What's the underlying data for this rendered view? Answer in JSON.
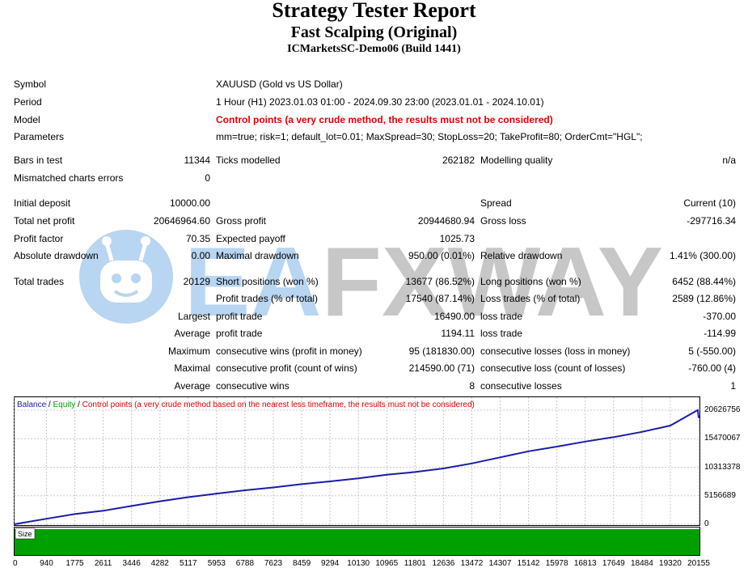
{
  "header": {
    "title": "Strategy Tester Report",
    "subtitle": "Fast Scalping (Original)",
    "server": "ICMarketsSC-Demo06 (Build 1441)"
  },
  "info": {
    "symbol_label": "Symbol",
    "symbol_value": "XAUUSD (Gold vs US Dollar)",
    "period_label": "Period",
    "period_value": "1 Hour (H1) 2023.01.03 01:00 - 2024.09.30 23:00 (2023.01.01 - 2024.10.01)",
    "model_label": "Model",
    "model_value": "Control points (a very crude method, the results must not be considered)",
    "params_label": "Parameters",
    "params_value": "mm=true; risk=1; default_lot=0.01; MaxSpread=30; StopLoss=20; TakeProfit=80; OrderCmt=\"HGL\";"
  },
  "stats": {
    "bars_label": "Bars in test",
    "bars_value": "11344",
    "ticks_label": "Ticks modelled",
    "ticks_value": "262182",
    "mq_label": "Modelling quality",
    "mq_value": "n/a",
    "mismatch_label": "Mismatched charts errors",
    "mismatch_value": "0",
    "deposit_label": "Initial deposit",
    "deposit_value": "10000.00",
    "spread_label": "Spread",
    "spread_value": "Current (10)",
    "netprofit_label": "Total net profit",
    "netprofit_value": "20646964.60",
    "grossprofit_label": "Gross profit",
    "grossprofit_value": "20944680.94",
    "grossloss_label": "Gross loss",
    "grossloss_value": "-297716.34",
    "pf_label": "Profit factor",
    "pf_value": "70.35",
    "ep_label": "Expected payoff",
    "ep_value": "1025.73",
    "absdd_label": "Absolute drawdown",
    "absdd_value": "0.00",
    "maxdd_label": "Maximal drawdown",
    "maxdd_value": "950.00 (0.01%)",
    "reldd_label": "Relative drawdown",
    "reldd_value": "1.41% (300.00)",
    "trades_label": "Total trades",
    "trades_value": "20129",
    "short_label": "Short positions (won %)",
    "short_value": "13677 (86.52%)",
    "long_label": "Long positions (won %)",
    "long_value": "6452 (88.44%)",
    "ptrades_label": "Profit trades (% of total)",
    "ptrades_value": "17540 (87.14%)",
    "ltrades_label": "Loss trades (% of total)",
    "ltrades_value": "2589 (12.86%)",
    "largest_label": "Largest",
    "largest_pt_label": "profit trade",
    "largest_pt_value": "16490.00",
    "largest_lt_label": "loss trade",
    "largest_lt_value": "-370.00",
    "average_label": "Average",
    "average_pt_label": "profit trade",
    "average_pt_value": "1194.11",
    "average_lt_label": "loss trade",
    "average_lt_value": "-114.99",
    "maximum_label": "Maximum",
    "maximum_cw_label": "consecutive wins (profit in money)",
    "maximum_cw_value": "95 (181830.00)",
    "maximum_cl_label": "consecutive losses (loss in money)",
    "maximum_cl_value": "5 (-550.00)",
    "maximal_label": "Maximal",
    "maximal_cp_label": "consecutive profit (count of wins)",
    "maximal_cp_value": "214590.00 (71)",
    "maximal_cl_label": "consecutive loss (count of losses)",
    "maximal_cl_value": "-760.00 (4)",
    "avg2_label": "Average",
    "avg2_cw_label": "consecutive wins",
    "avg2_cw_value": "8",
    "avg2_cl_label": "consecutive losses",
    "avg2_cl_value": "1"
  },
  "watermark": {
    "text": "EAFXWAY"
  },
  "chart_legend": {
    "balance": "Balance",
    "sep1": " / ",
    "equity": "Equity",
    "sep2": " / ",
    "control": "Control points (a very crude method based on the nearest less timeframe, the results must not be considered)"
  },
  "size_label": "Size",
  "colors": {
    "balance": "#1c1ca8",
    "equity": "#00a000",
    "control": "#e00000",
    "size_bar": "#00a000",
    "grid": "#c8c8c8"
  },
  "chart_data": {
    "type": "line",
    "series": [
      {
        "name": "Balance",
        "x": [
          0,
          940,
          1775,
          2611,
          3446,
          4282,
          5117,
          5953,
          6788,
          7623,
          8459,
          9294,
          10130,
          10965,
          11801,
          12636,
          13472,
          14307,
          15142,
          15978,
          16813,
          17649,
          18484,
          19320,
          20155,
          20129
        ],
        "values": [
          10000,
          1000000,
          1850000,
          2450000,
          3300000,
          4150000,
          4900000,
          5550000,
          6150000,
          6650000,
          7250000,
          7750000,
          8300000,
          8950000,
          9450000,
          10100000,
          11000000,
          12100000,
          13200000,
          14050000,
          14950000,
          15750000,
          16700000,
          17850000,
          19300000,
          20656964
        ]
      }
    ],
    "y_ticks": [
      "20626756",
      "15470067",
      "10313378",
      "5156689",
      "0"
    ],
    "x_ticks": [
      "0",
      "940",
      "1775",
      "2611",
      "3446",
      "4282",
      "5117",
      "5953",
      "6788",
      "7623",
      "8459",
      "9294",
      "10130",
      "10965",
      "11801",
      "12636",
      "13472",
      "14307",
      "15142",
      "15978",
      "16813",
      "17649",
      "18484",
      "19320",
      "20155"
    ],
    "ylim": [
      0,
      20626756
    ],
    "grid": true
  }
}
